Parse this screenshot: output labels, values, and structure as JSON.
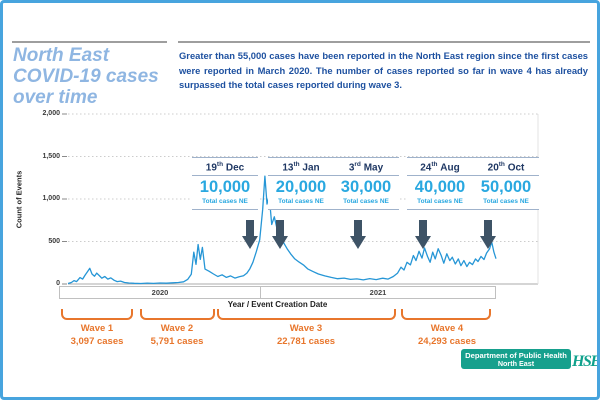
{
  "window": {
    "border_color": "#47A4DE"
  },
  "header": {
    "title_line1": "North East",
    "title_line2": "COVID-19 cases",
    "title_line3": "over time",
    "intro": "Greater than 55,000 cases have been reported in the North East region since the first cases were reported in March 2020. The number of cases reported so far in wave 4 has already surpassed the total cases reported during wave 3."
  },
  "chart_data": {
    "type": "line",
    "title": "",
    "xlabel": "Year / Event Creation Date",
    "ylabel": "Count of Events",
    "ylim": [
      0,
      2000
    ],
    "grid": "horizontal dotted",
    "legend": "none",
    "line_color": "#2696D6",
    "y_grid_values": [
      0,
      500,
      1000,
      1500,
      2000
    ],
    "y_tick_labels": [
      "2,000",
      "1,500",
      "1,000",
      "500",
      "0"
    ],
    "x_year_bands": [
      "2020",
      "2021"
    ],
    "series": [
      {
        "name": "Count of Events",
        "points": [
          [
            0.0,
            6
          ],
          [
            0.008,
            18
          ],
          [
            0.014,
            40
          ],
          [
            0.02,
            28
          ],
          [
            0.028,
            75
          ],
          [
            0.034,
            58
          ],
          [
            0.04,
            105
          ],
          [
            0.046,
            148
          ],
          [
            0.051,
            185
          ],
          [
            0.056,
            118
          ],
          [
            0.062,
            92
          ],
          [
            0.067,
            128
          ],
          [
            0.073,
            100
          ],
          [
            0.079,
            68
          ],
          [
            0.086,
            88
          ],
          [
            0.093,
            58
          ],
          [
            0.1,
            72
          ],
          [
            0.108,
            44
          ],
          [
            0.115,
            28
          ],
          [
            0.123,
            34
          ],
          [
            0.132,
            18
          ],
          [
            0.142,
            12
          ],
          [
            0.155,
            8
          ],
          [
            0.17,
            6
          ],
          [
            0.185,
            10
          ],
          [
            0.2,
            7
          ],
          [
            0.215,
            12
          ],
          [
            0.23,
            9
          ],
          [
            0.245,
            14
          ],
          [
            0.258,
            18
          ],
          [
            0.27,
            26
          ],
          [
            0.28,
            55
          ],
          [
            0.288,
            115
          ],
          [
            0.294,
            375
          ],
          [
            0.299,
            230
          ],
          [
            0.304,
            465
          ],
          [
            0.309,
            290
          ],
          [
            0.314,
            430
          ],
          [
            0.32,
            175
          ],
          [
            0.33,
            150
          ],
          [
            0.34,
            118
          ],
          [
            0.35,
            88
          ],
          [
            0.36,
            108
          ],
          [
            0.37,
            78
          ],
          [
            0.38,
            95
          ],
          [
            0.39,
            70
          ],
          [
            0.4,
            85
          ],
          [
            0.41,
            96
          ],
          [
            0.418,
            128
          ],
          [
            0.425,
            180
          ],
          [
            0.432,
            255
          ],
          [
            0.44,
            380
          ],
          [
            0.448,
            520
          ],
          [
            0.455,
            880
          ],
          [
            0.46,
            1270
          ],
          [
            0.465,
            940
          ],
          [
            0.47,
            1040
          ],
          [
            0.476,
            700
          ],
          [
            0.482,
            790
          ],
          [
            0.49,
            615
          ],
          [
            0.497,
            555
          ],
          [
            0.505,
            475
          ],
          [
            0.512,
            415
          ],
          [
            0.52,
            355
          ],
          [
            0.53,
            295
          ],
          [
            0.54,
            258
          ],
          [
            0.55,
            225
          ],
          [
            0.56,
            178
          ],
          [
            0.572,
            148
          ],
          [
            0.585,
            118
          ],
          [
            0.6,
            95
          ],
          [
            0.615,
            78
          ],
          [
            0.63,
            62
          ],
          [
            0.645,
            70
          ],
          [
            0.66,
            54
          ],
          [
            0.675,
            60
          ],
          [
            0.69,
            48
          ],
          [
            0.705,
            64
          ],
          [
            0.72,
            52
          ],
          [
            0.735,
            68
          ],
          [
            0.748,
            58
          ],
          [
            0.76,
            88
          ],
          [
            0.77,
            128
          ],
          [
            0.778,
            198
          ],
          [
            0.785,
            165
          ],
          [
            0.792,
            255
          ],
          [
            0.8,
            225
          ],
          [
            0.807,
            335
          ],
          [
            0.813,
            275
          ],
          [
            0.82,
            385
          ],
          [
            0.827,
            305
          ],
          [
            0.833,
            425
          ],
          [
            0.84,
            325
          ],
          [
            0.846,
            255
          ],
          [
            0.852,
            375
          ],
          [
            0.858,
            295
          ],
          [
            0.865,
            415
          ],
          [
            0.872,
            335
          ],
          [
            0.878,
            245
          ],
          [
            0.885,
            355
          ],
          [
            0.892,
            275
          ],
          [
            0.898,
            315
          ],
          [
            0.905,
            235
          ],
          [
            0.912,
            295
          ],
          [
            0.918,
            215
          ],
          [
            0.925,
            275
          ],
          [
            0.932,
            205
          ],
          [
            0.938,
            255
          ],
          [
            0.945,
            228
          ],
          [
            0.952,
            295
          ],
          [
            0.958,
            265
          ],
          [
            0.965,
            325
          ],
          [
            0.972,
            288
          ],
          [
            0.978,
            365
          ],
          [
            0.985,
            415
          ],
          [
            0.99,
            495
          ],
          [
            0.995,
            375
          ],
          [
            1.0,
            298
          ]
        ]
      }
    ],
    "annotations": [
      {
        "day": "19",
        "suffix": "th",
        "month": "Dec",
        "total": "10,000",
        "caption": "Total cases NE"
      },
      {
        "day": "13",
        "suffix": "th",
        "month": "Jan",
        "total": "20,000",
        "caption": "Total cases NE"
      },
      {
        "day": "3",
        "suffix": "rd",
        "month": "May",
        "total": "30,000",
        "caption": "Total cases NE"
      },
      {
        "day": "24",
        "suffix": "th",
        "month": "Aug",
        "total": "40,000",
        "caption": "Total cases NE"
      },
      {
        "day": "20",
        "suffix": "th",
        "month": "Oct",
        "total": "50,000",
        "caption": "Total cases NE"
      }
    ],
    "waves": [
      {
        "name": "Wave 1",
        "cases": "3,097 cases"
      },
      {
        "name": "Wave 2",
        "cases": "5,791 cases"
      },
      {
        "name": "Wave 3",
        "cases": "22,781 cases"
      },
      {
        "name": "Wave 4",
        "cases": "24,293 cases"
      }
    ],
    "accent_orange": "#E8762C",
    "annotation_number_color": "#29A8E0",
    "annotation_date_color": "#1F3864",
    "arrow_color": "#3E5366"
  },
  "footer": {
    "badge_line1": "Department of Public Health",
    "badge_line2": "North East",
    "badge_color": "#16A08D",
    "logo_text": "HSE",
    "logo_color": "#0FA18C"
  }
}
